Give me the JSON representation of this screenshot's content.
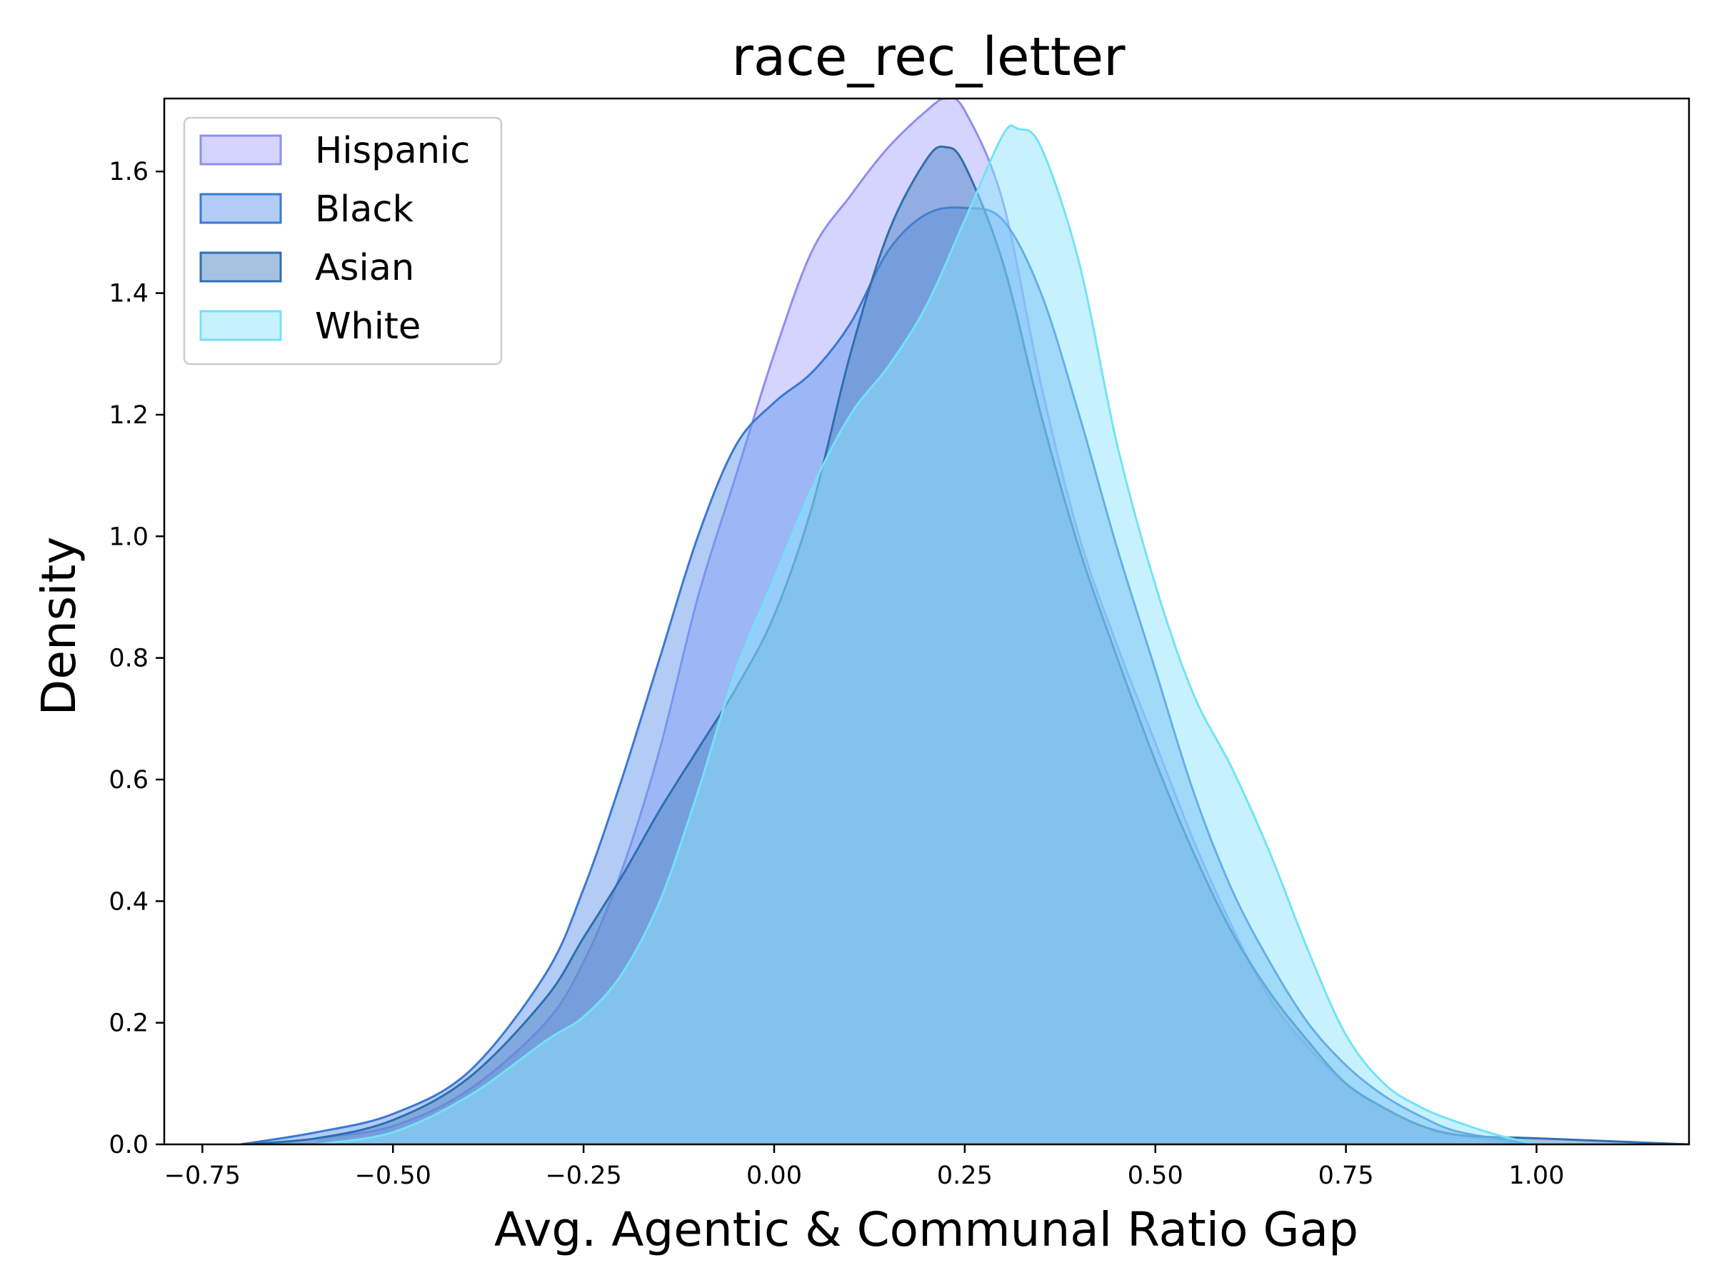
{
  "chart_data": {
    "type": "area",
    "title": "race_rec_letter",
    "xlabel": "Avg. Agentic & Communal Ratio Gap",
    "ylabel": "Density",
    "xlim": [
      -0.8,
      1.2
    ],
    "ylim": [
      0.0,
      1.72
    ],
    "x_ticks": [
      -0.75,
      -0.5,
      -0.25,
      0.0,
      0.25,
      0.5,
      0.75,
      1.0
    ],
    "x_tick_labels": [
      "−0.75",
      "−0.50",
      "−0.25",
      "0.00",
      "0.25",
      "0.50",
      "0.75",
      "1.00"
    ],
    "y_ticks": [
      0.0,
      0.2,
      0.4,
      0.6,
      0.8,
      1.0,
      1.2,
      1.4,
      1.6
    ],
    "y_tick_labels": [
      "0.0",
      "0.2",
      "0.4",
      "0.6",
      "0.8",
      "1.0",
      "1.2",
      "1.4",
      "1.6"
    ],
    "grid": false,
    "legend_position": "top-left",
    "series": [
      {
        "name": "Hispanic",
        "fill": "#aaaaff",
        "stroke": "#8e8ef0",
        "x": [
          -0.6,
          -0.5,
          -0.4,
          -0.3,
          -0.25,
          -0.2,
          -0.15,
          -0.1,
          -0.05,
          0.0,
          0.05,
          0.1,
          0.15,
          0.2,
          0.225,
          0.25,
          0.3,
          0.35,
          0.4,
          0.45,
          0.5,
          0.55,
          0.6,
          0.65,
          0.7,
          0.75,
          0.8,
          0.85,
          0.9,
          0.95,
          1.0
        ],
        "y": [
          0.01,
          0.03,
          0.09,
          0.2,
          0.3,
          0.45,
          0.65,
          0.9,
          1.1,
          1.3,
          1.47,
          1.56,
          1.64,
          1.7,
          1.72,
          1.7,
          1.55,
          1.25,
          1.0,
          0.82,
          0.66,
          0.5,
          0.36,
          0.24,
          0.16,
          0.1,
          0.06,
          0.03,
          0.015,
          0.005,
          0.0
        ]
      },
      {
        "name": "Black",
        "fill": "#6699ee",
        "stroke": "#3a78d4",
        "x": [
          -0.7,
          -0.6,
          -0.5,
          -0.4,
          -0.3,
          -0.25,
          -0.2,
          -0.15,
          -0.1,
          -0.05,
          0.0,
          0.05,
          0.1,
          0.15,
          0.2,
          0.25,
          0.3,
          0.35,
          0.4,
          0.45,
          0.5,
          0.55,
          0.6,
          0.65,
          0.7,
          0.75,
          0.8,
          0.85,
          0.9,
          1.0
        ],
        "y": [
          0.0,
          0.02,
          0.05,
          0.12,
          0.28,
          0.42,
          0.6,
          0.8,
          1.0,
          1.15,
          1.22,
          1.27,
          1.35,
          1.47,
          1.53,
          1.54,
          1.52,
          1.4,
          1.2,
          0.98,
          0.78,
          0.58,
          0.42,
          0.3,
          0.2,
          0.13,
          0.08,
          0.045,
          0.02,
          0.0
        ]
      },
      {
        "name": "Asian",
        "fill": "#4f86c4",
        "stroke": "#2e6fb0",
        "x": [
          -0.7,
          -0.6,
          -0.5,
          -0.4,
          -0.3,
          -0.25,
          -0.2,
          -0.15,
          -0.1,
          -0.05,
          0.0,
          0.05,
          0.1,
          0.15,
          0.2,
          0.225,
          0.25,
          0.3,
          0.35,
          0.4,
          0.45,
          0.5,
          0.55,
          0.6,
          0.65,
          0.7,
          0.75,
          0.8,
          0.85,
          0.9,
          1.0,
          1.1,
          1.2
        ],
        "y": [
          0.0,
          0.01,
          0.04,
          0.11,
          0.24,
          0.34,
          0.44,
          0.55,
          0.65,
          0.75,
          0.87,
          1.05,
          1.3,
          1.5,
          1.62,
          1.64,
          1.61,
          1.45,
          1.2,
          0.98,
          0.8,
          0.63,
          0.48,
          0.35,
          0.25,
          0.17,
          0.1,
          0.06,
          0.03,
          0.015,
          0.01,
          0.005,
          0.0
        ]
      },
      {
        "name": "White",
        "fill": "#8fe6fb",
        "stroke": "#73e2f6",
        "x": [
          -0.6,
          -0.5,
          -0.4,
          -0.3,
          -0.25,
          -0.2,
          -0.15,
          -0.1,
          -0.05,
          0.0,
          0.05,
          0.1,
          0.15,
          0.2,
          0.25,
          0.3,
          0.32,
          0.35,
          0.4,
          0.45,
          0.5,
          0.55,
          0.6,
          0.65,
          0.7,
          0.75,
          0.8,
          0.85,
          0.9,
          0.95,
          1.0
        ],
        "y": [
          0.0,
          0.02,
          0.08,
          0.17,
          0.21,
          0.28,
          0.4,
          0.58,
          0.78,
          0.93,
          1.08,
          1.2,
          1.28,
          1.38,
          1.52,
          1.66,
          1.67,
          1.64,
          1.45,
          1.15,
          0.92,
          0.74,
          0.62,
          0.48,
          0.32,
          0.18,
          0.1,
          0.06,
          0.035,
          0.015,
          0.0
        ]
      }
    ]
  }
}
